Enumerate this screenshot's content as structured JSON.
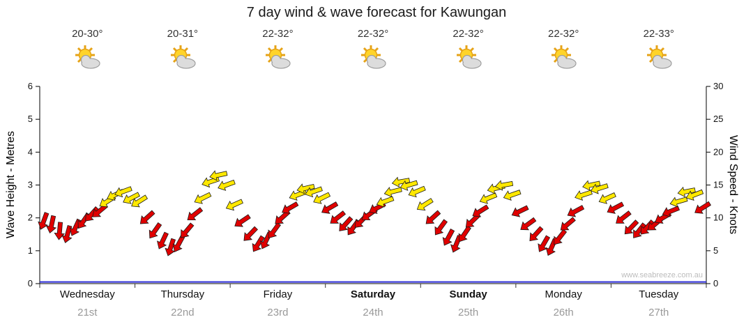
{
  "page": {
    "title": "7 day wind & wave forecast for Kawungan",
    "watermark": "www.seabreeze.com.au"
  },
  "axes": {
    "left_label": "Wave Height - Metres",
    "right_label": "Wind Speed - Knots"
  },
  "days": [
    {
      "name": "Wednesday",
      "date": "21st",
      "temp": "20-30°",
      "weekend": false
    },
    {
      "name": "Thursday",
      "date": "22nd",
      "temp": "20-31°",
      "weekend": false
    },
    {
      "name": "Friday",
      "date": "23rd",
      "temp": "22-32°",
      "weekend": false
    },
    {
      "name": "Saturday",
      "date": "24th",
      "temp": "22-32°",
      "weekend": true
    },
    {
      "name": "Sunday",
      "date": "25th",
      "temp": "22-32°",
      "weekend": true
    },
    {
      "name": "Monday",
      "date": "26th",
      "temp": "22-32°",
      "weekend": false
    },
    {
      "name": "Tuesday",
      "date": "27th",
      "temp": "22-33°",
      "weekend": false
    }
  ],
  "chart_data": {
    "type": "wind-arrows",
    "title": "7 day wind & wave forecast for Kawungan",
    "x_categories": [
      "Wednesday 21st",
      "Thursday 22nd",
      "Friday 23rd",
      "Saturday 24th",
      "Sunday 25th",
      "Monday 26th",
      "Tuesday 27th"
    ],
    "y_left": {
      "label": "Wave Height - Metres",
      "min": 0,
      "max": 6,
      "tick_step": 1
    },
    "y_right": {
      "label": "Wind Speed - Knots",
      "min": 0,
      "max": 30,
      "tick_step": 5
    },
    "grid": false,
    "sample_hours": [
      0,
      2,
      4,
      6,
      8,
      10,
      12,
      14,
      16,
      18,
      20,
      22
    ],
    "wind_knots": [
      [
        9.5,
        9,
        8,
        7.5,
        8.5,
        9.5,
        10.5,
        11,
        12.5,
        13.5,
        14,
        13
      ],
      [
        12.5,
        10,
        8,
        6.5,
        5.5,
        6,
        8,
        10.5,
        13,
        15.5,
        16.5,
        15
      ],
      [
        12,
        9.5,
        7.5,
        6,
        6.5,
        8,
        10,
        11.5,
        13.5,
        14.5,
        14,
        13
      ],
      [
        11.5,
        10,
        9,
        8.5,
        9.5,
        10.5,
        11.5,
        12.5,
        14,
        15.5,
        15,
        14
      ],
      [
        12,
        10,
        8.5,
        7,
        6,
        7.5,
        9.5,
        11,
        13,
        14.5,
        15,
        13.5
      ],
      [
        11,
        9,
        7.5,
        6,
        5.5,
        7,
        9,
        11,
        13.5,
        15,
        14.5,
        13
      ],
      [
        11.5,
        10,
        8.5,
        8,
        8.5,
        9,
        10,
        11,
        12.5,
        14,
        13.5,
        11.5
      ]
    ],
    "wind_dir_deg": [
      [
        200,
        192,
        185,
        195,
        205,
        215,
        222,
        230,
        238,
        245,
        250,
        243
      ],
      [
        238,
        228,
        215,
        205,
        198,
        208,
        220,
        232,
        244,
        252,
        258,
        250
      ],
      [
        246,
        236,
        224,
        212,
        206,
        216,
        228,
        240,
        250,
        257,
        251,
        244
      ],
      [
        240,
        232,
        222,
        216,
        224,
        234,
        242,
        250,
        256,
        260,
        254,
        247
      ],
      [
        238,
        228,
        216,
        208,
        202,
        214,
        226,
        238,
        248,
        256,
        260,
        251
      ],
      [
        244,
        234,
        222,
        210,
        204,
        218,
        230,
        242,
        252,
        258,
        253,
        246
      ],
      [
        242,
        232,
        224,
        218,
        222,
        230,
        240,
        248,
        254,
        259,
        249,
        238
      ]
    ],
    "wave_height_m": [
      0.03,
      0.03,
      0.03,
      0.03,
      0.03,
      0.03,
      0.03
    ],
    "color_scale": {
      "red_below_knots": 12,
      "red": "#e00000",
      "yellow": "#ffe800",
      "wave_line": "#2b2bd6"
    }
  }
}
